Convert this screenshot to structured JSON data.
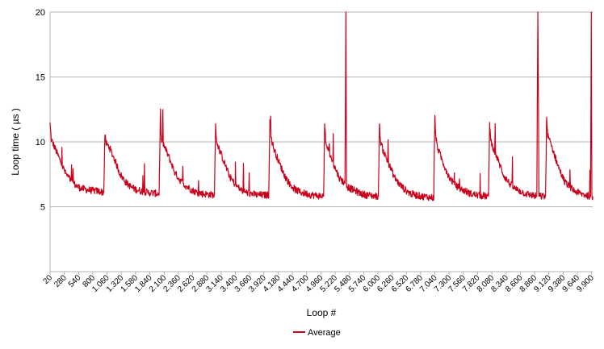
{
  "chart_data": {
    "type": "line",
    "title": "",
    "xlabel": "Loop #",
    "ylabel": "Loop time ( µs )",
    "ylim": [
      0,
      20
    ],
    "y_ticks": [
      5,
      10,
      15,
      20
    ],
    "x_range": [
      20,
      9920
    ],
    "x_tick_step": 260,
    "x_tick_labels": [
      "20",
      "280",
      "540",
      "800",
      "1.060",
      "1.320",
      "1.580",
      "1.840",
      "2.100",
      "2.360",
      "2.620",
      "2.880",
      "3.140",
      "3.400",
      "3.660",
      "3.920",
      "4.180",
      "4.440",
      "4.700",
      "4.960",
      "5.220",
      "5.480",
      "5.740",
      "6.000",
      "6.260",
      "6.520",
      "6.780",
      "7.040",
      "7.300",
      "7.560",
      "7.820",
      "8.080",
      "8.340",
      "8.600",
      "8.860",
      "9.120",
      "9.380",
      "9.640",
      "9.900"
    ],
    "grid": "horizontal",
    "legend": {
      "position": "bottom",
      "entries": [
        "Average"
      ]
    },
    "series": [
      {
        "name": "Average",
        "color": "#c9001a",
        "cycle_starts": [
          20,
          1020,
          2030,
          3040,
          4030,
          5030,
          6030,
          7040,
          8040
        ],
        "values": [
          [
            20,
            11.4
          ],
          [
            40,
            10.2
          ],
          [
            100,
            9.6
          ],
          [
            200,
            8.6
          ],
          [
            300,
            7.6
          ],
          [
            400,
            7.0
          ],
          [
            500,
            6.6
          ],
          [
            600,
            6.4
          ],
          [
            700,
            6.3
          ],
          [
            800,
            6.25
          ],
          [
            900,
            6.2
          ],
          [
            1000,
            6.1
          ],
          [
            1020,
            10.5
          ],
          [
            1040,
            9.9
          ],
          [
            1100,
            9.6
          ],
          [
            1200,
            8.6
          ],
          [
            1300,
            7.5
          ],
          [
            1400,
            6.9
          ],
          [
            1500,
            6.5
          ],
          [
            1600,
            6.3
          ],
          [
            1700,
            6.2
          ],
          [
            1800,
            6.1
          ],
          [
            2010,
            6.0
          ],
          [
            2030,
            11.5
          ],
          [
            2050,
            10.2
          ],
          [
            2100,
            9.7
          ],
          [
            2200,
            8.7
          ],
          [
            2300,
            7.6
          ],
          [
            2400,
            7.0
          ],
          [
            2500,
            6.6
          ],
          [
            2600,
            6.3
          ],
          [
            2700,
            6.1
          ],
          [
            2800,
            6.0
          ],
          [
            3020,
            5.9
          ],
          [
            3040,
            11.4
          ],
          [
            3060,
            10.0
          ],
          [
            3100,
            9.5
          ],
          [
            3200,
            8.4
          ],
          [
            3300,
            7.3
          ],
          [
            3400,
            6.7
          ],
          [
            3500,
            6.3
          ],
          [
            3600,
            6.1
          ],
          [
            3700,
            6.0
          ],
          [
            3800,
            5.9
          ],
          [
            4010,
            5.9
          ],
          [
            4030,
            11.7
          ],
          [
            4050,
            10.4
          ],
          [
            4100,
            9.5
          ],
          [
            4200,
            8.4
          ],
          [
            4300,
            7.4
          ],
          [
            4400,
            6.7
          ],
          [
            4500,
            6.3
          ],
          [
            4600,
            6.1
          ],
          [
            4700,
            6.0
          ],
          [
            4800,
            5.9
          ],
          [
            5010,
            5.8
          ],
          [
            5030,
            11.4
          ],
          [
            5050,
            9.9
          ],
          [
            5100,
            9.3
          ],
          [
            5200,
            8.2
          ],
          [
            5300,
            7.2
          ],
          [
            5400,
            6.8
          ],
          [
            5418,
            20
          ],
          [
            5430,
            6.6
          ],
          [
            5500,
            6.4
          ],
          [
            5600,
            6.2
          ],
          [
            5700,
            6.0
          ],
          [
            5800,
            5.9
          ],
          [
            6010,
            5.8
          ],
          [
            6030,
            11.4
          ],
          [
            6050,
            10.0
          ],
          [
            6100,
            9.3
          ],
          [
            6200,
            8.3
          ],
          [
            6300,
            7.3
          ],
          [
            6400,
            6.7
          ],
          [
            6500,
            6.3
          ],
          [
            6600,
            6.0
          ],
          [
            6700,
            5.9
          ],
          [
            6800,
            5.8
          ],
          [
            7020,
            5.7
          ],
          [
            7040,
            12.0
          ],
          [
            7060,
            10.2
          ],
          [
            7100,
            9.4
          ],
          [
            7200,
            8.3
          ],
          [
            7300,
            7.3
          ],
          [
            7400,
            6.7
          ],
          [
            7500,
            6.4
          ],
          [
            7600,
            6.2
          ],
          [
            7700,
            6.0
          ],
          [
            7800,
            5.9
          ],
          [
            8020,
            5.8
          ],
          [
            8040,
            11.5
          ],
          [
            8060,
            10.1
          ],
          [
            8100,
            9.6
          ],
          [
            8200,
            8.5
          ],
          [
            8300,
            7.4
          ],
          [
            8400,
            6.8
          ],
          [
            8500,
            6.4
          ],
          [
            8600,
            6.2
          ],
          [
            8700,
            6.0
          ],
          [
            8800,
            5.9
          ],
          [
            8900,
            5.8
          ],
          [
            8920,
            20
          ],
          [
            8940,
            5.8
          ],
          [
            9060,
            5.8
          ],
          [
            9080,
            11.9
          ],
          [
            9100,
            10.5
          ],
          [
            9200,
            9.3
          ],
          [
            9300,
            8.0
          ],
          [
            9400,
            7.0
          ],
          [
            9500,
            6.5
          ],
          [
            9600,
            6.2
          ],
          [
            9700,
            6.0
          ],
          [
            9800,
            5.9
          ],
          [
            9880,
            5.8
          ],
          [
            9895,
            20
          ],
          [
            9905,
            5.9
          ],
          [
            9920,
            5.8
          ]
        ]
      }
    ]
  }
}
